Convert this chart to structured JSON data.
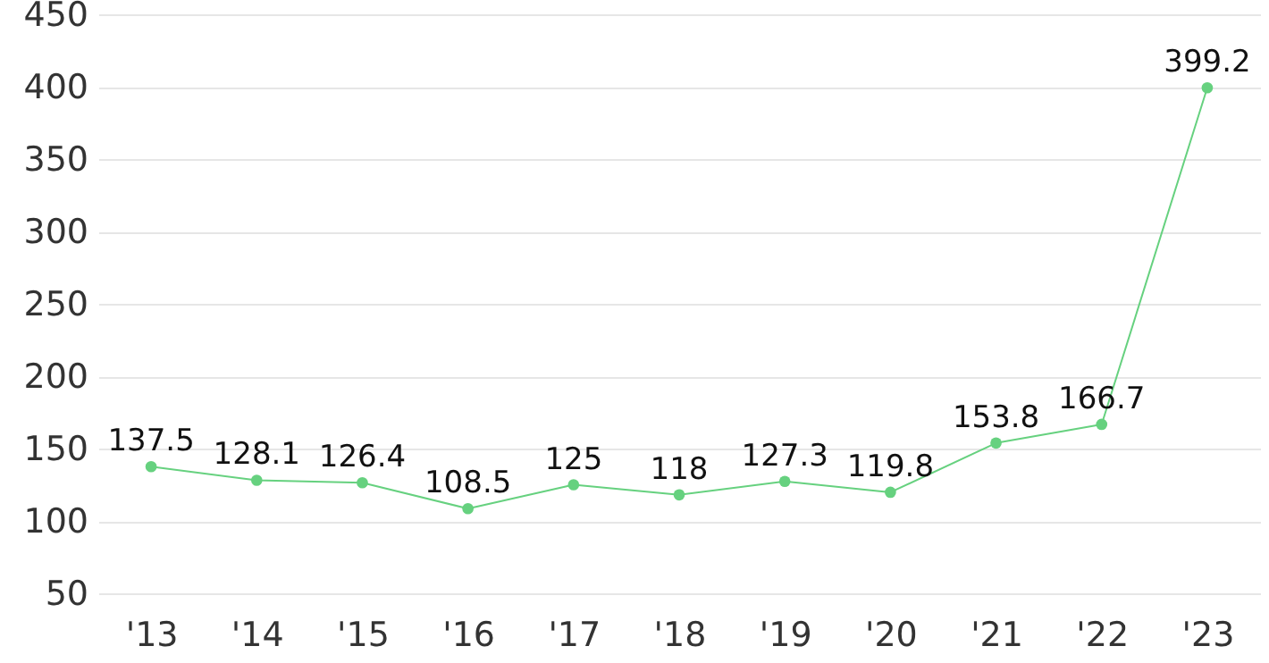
{
  "chart_data": {
    "type": "line",
    "categories": [
      "'13",
      "'14",
      "'15",
      "'16",
      "'17",
      "'18",
      "'19",
      "'20",
      "'21",
      "'22",
      "'23"
    ],
    "series": [
      {
        "color": "#66d17f",
        "values": [
          137.5,
          128.1,
          126.4,
          108.5,
          125,
          118,
          127.3,
          119.8,
          153.8,
          166.7,
          399.2
        ]
      }
    ],
    "ylim": [
      50,
      450
    ],
    "yticks": [
      50,
      100,
      150,
      200,
      250,
      300,
      350,
      400,
      450
    ],
    "grid": "y",
    "marker": "circle",
    "line_style": "solid",
    "data_labels": true
  }
}
